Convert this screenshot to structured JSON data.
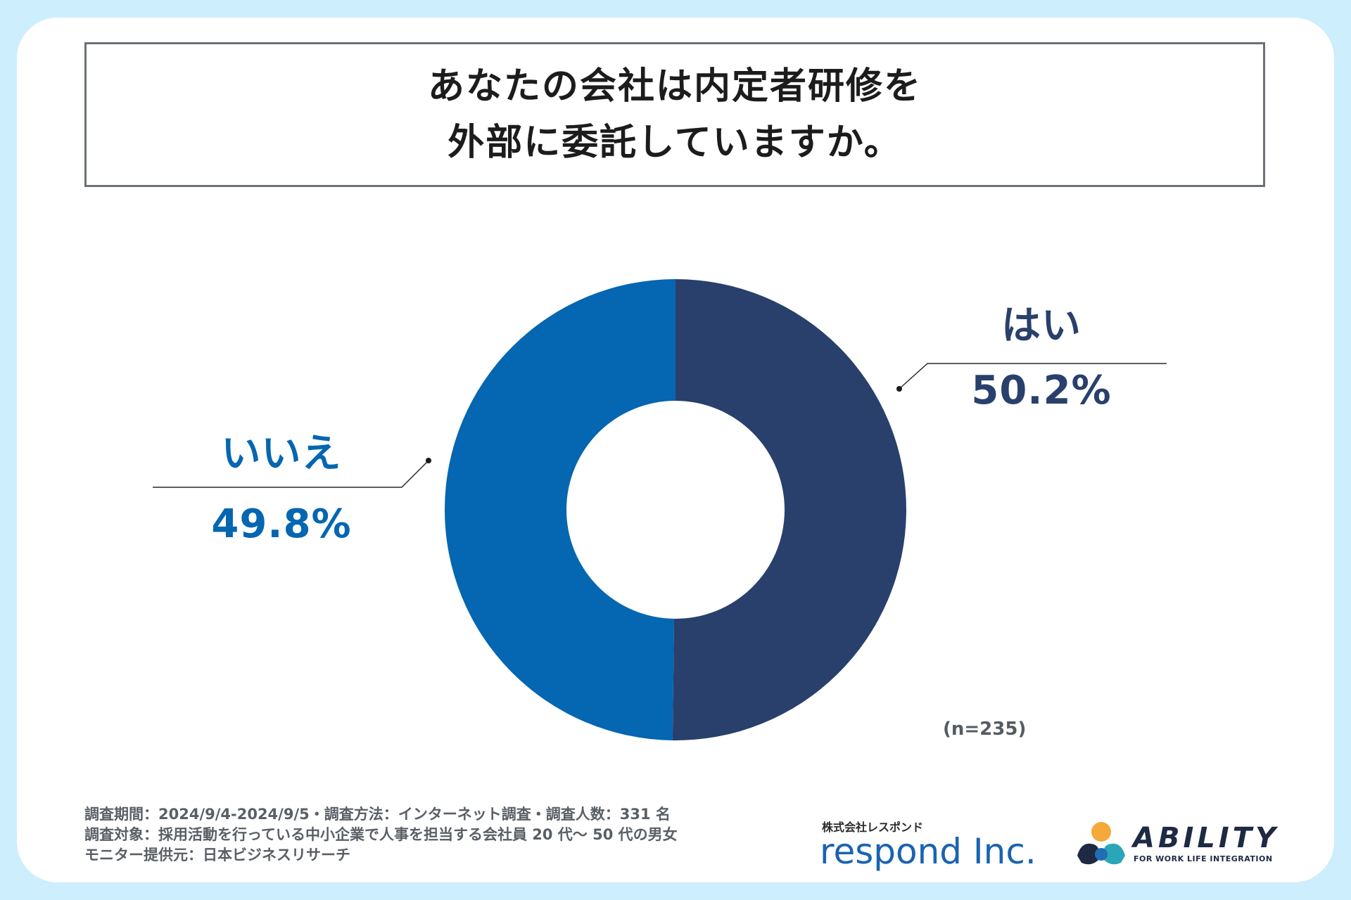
{
  "title": {
    "line1": "あなたの会社は内定者研修を",
    "line2": "外部に委託していますか。"
  },
  "chart_data": {
    "type": "pie",
    "variant": "donut",
    "categories": [
      "はい",
      "いいえ"
    ],
    "values": [
      50.2,
      49.8
    ],
    "value_labels": [
      "50.2%",
      "49.8%"
    ],
    "colors": [
      "#28406b",
      "#0566b1"
    ],
    "sample_note": "(n=235)"
  },
  "footer": {
    "line1": "調査期間：2024/9/4-2024/9/5・調査方法：インターネット調査・調査人数：331 名",
    "line2": "調査対象：採用活動を行っている中小企業で人事を担当する会社員 20 代〜 50 代の男女",
    "line3": "モニター提供元：日本ビジネスリサーチ"
  },
  "logos": {
    "respond_sub": "株式会社レスポンド",
    "respond_main": "respond Inc.",
    "ability_word": "ABILITY",
    "ability_tagline": "FOR WORK LIFE INTEGRATION"
  },
  "icons": {
    "ability_mark": "ability-logo-icon"
  }
}
